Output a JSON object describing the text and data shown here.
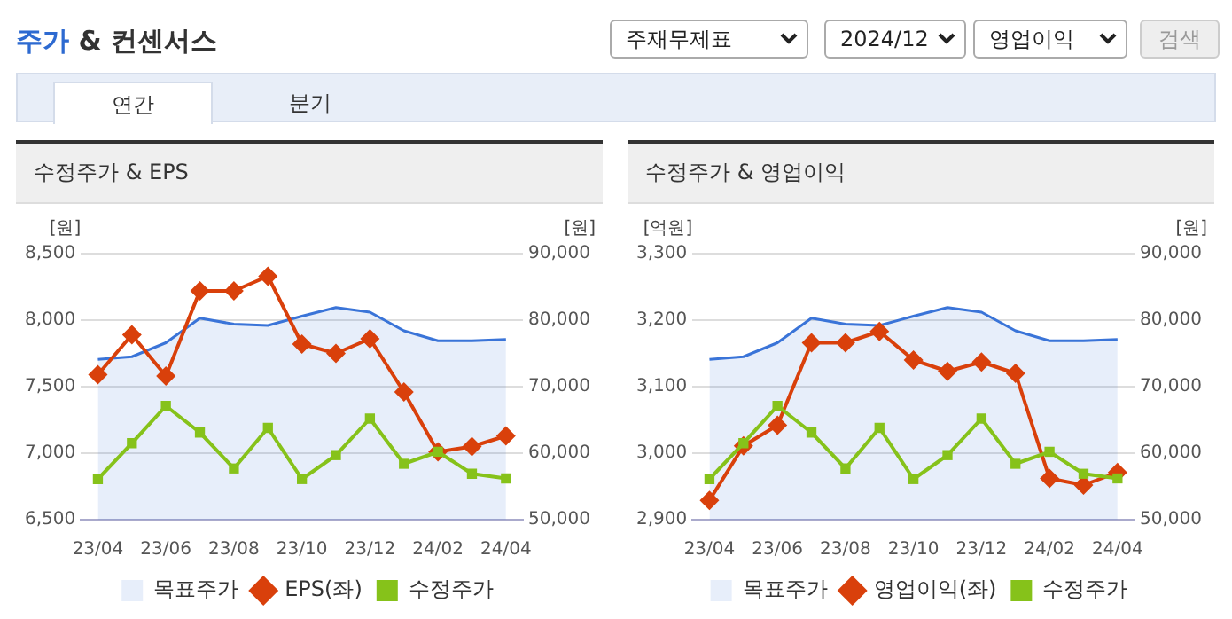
{
  "chart_data": [
    {
      "type": "other",
      "title": "주가 & 컨센서스",
      "annotations": [
        "주재무제표",
        "2024/12",
        "영업이익",
        "검색",
        "연간",
        "분기"
      ]
    },
    {
      "type": "line",
      "title": "수정주가 & EPS",
      "ylabel": "[원]",
      "y2label": "[원]",
      "categories": [
        "23/04",
        null,
        "23/06",
        null,
        "23/08",
        null,
        "23/10",
        null,
        "23/12",
        null,
        "24/02",
        null,
        "24/04"
      ],
      "ylim": [
        6500,
        8500
      ],
      "yticks": [
        {
          "value": 6500,
          "label": "6,500"
        },
        {
          "value": 7000,
          "label": "7,000"
        },
        {
          "value": 7500,
          "label": "7,500"
        },
        {
          "value": 8000,
          "label": "8,000"
        },
        {
          "value": 8500,
          "label": "8,500"
        }
      ],
      "y2lim": [
        50000,
        90000
      ],
      "y2ticks": [
        {
          "value": 50000,
          "label": "50,000"
        },
        {
          "value": 60000,
          "label": "60,000"
        },
        {
          "value": 70000,
          "label": "70,000"
        },
        {
          "value": 80000,
          "label": "80,000"
        },
        {
          "value": 90000,
          "label": "90,000"
        }
      ],
      "grid": "y",
      "legend": "bottom",
      "series": [
        {
          "name": "목표주가",
          "type": "area",
          "axis": "y2",
          "color": "#3a74d8",
          "marker": "none",
          "values": [
            74100,
            74500,
            76600,
            80300,
            79400,
            79200,
            80600,
            81900,
            81200,
            78400,
            76900,
            76900,
            77100
          ]
        },
        {
          "name": "EPS(좌)",
          "type": "line",
          "color": "#d9400b",
          "marker": "diamond",
          "values": [
            7590,
            7890,
            7580,
            8220,
            8220,
            8330,
            7820,
            7750,
            7860,
            7460,
            7010,
            7050,
            7130
          ]
        },
        {
          "name": "수정주가",
          "type": "line",
          "axis": "y2",
          "color": "#86c21a",
          "marker": "square",
          "values": [
            56100,
            61500,
            67100,
            63100,
            57700,
            63800,
            56100,
            59700,
            65200,
            58400,
            60200,
            56900,
            56200
          ]
        }
      ]
    },
    {
      "type": "line",
      "title": "수정주가 & 영업이익",
      "ylabel": "[억원]",
      "y2label": "[원]",
      "categories": [
        "23/04",
        null,
        "23/06",
        null,
        "23/08",
        null,
        "23/10",
        null,
        "23/12",
        null,
        "24/02",
        null,
        "24/04"
      ],
      "ylim": [
        2900,
        3300
      ],
      "yticks": [
        {
          "value": 2900,
          "label": "2,900"
        },
        {
          "value": 3000,
          "label": "3,000"
        },
        {
          "value": 3100,
          "label": "3,100"
        },
        {
          "value": 3200,
          "label": "3,200"
        },
        {
          "value": 3300,
          "label": "3,300"
        }
      ],
      "y2lim": [
        50000,
        90000
      ],
      "y2ticks": [
        {
          "value": 50000,
          "label": "50,000"
        },
        {
          "value": 60000,
          "label": "60,000"
        },
        {
          "value": 70000,
          "label": "70,000"
        },
        {
          "value": 80000,
          "label": "80,000"
        },
        {
          "value": 90000,
          "label": "90,000"
        }
      ],
      "grid": "y",
      "legend": "bottom",
      "series": [
        {
          "name": "목표주가",
          "type": "area",
          "axis": "y2",
          "color": "#3a74d8",
          "marker": "none",
          "values": [
            74100,
            74500,
            76600,
            80300,
            79400,
            79200,
            80600,
            81900,
            81200,
            78400,
            76900,
            76900,
            77100
          ]
        },
        {
          "name": "영업이익(좌)",
          "type": "line",
          "color": "#d9400b",
          "marker": "diamond",
          "values": [
            2929,
            3011,
            3042,
            3166,
            3166,
            3183,
            3140,
            3123,
            3137,
            3120,
            2962,
            2952,
            2971
          ]
        },
        {
          "name": "수정주가",
          "type": "line",
          "axis": "y2",
          "color": "#86c21a",
          "marker": "square",
          "values": [
            56100,
            61500,
            67100,
            63100,
            57700,
            63800,
            56100,
            59700,
            65200,
            58400,
            60200,
            56900,
            56200
          ]
        }
      ]
    }
  ]
}
